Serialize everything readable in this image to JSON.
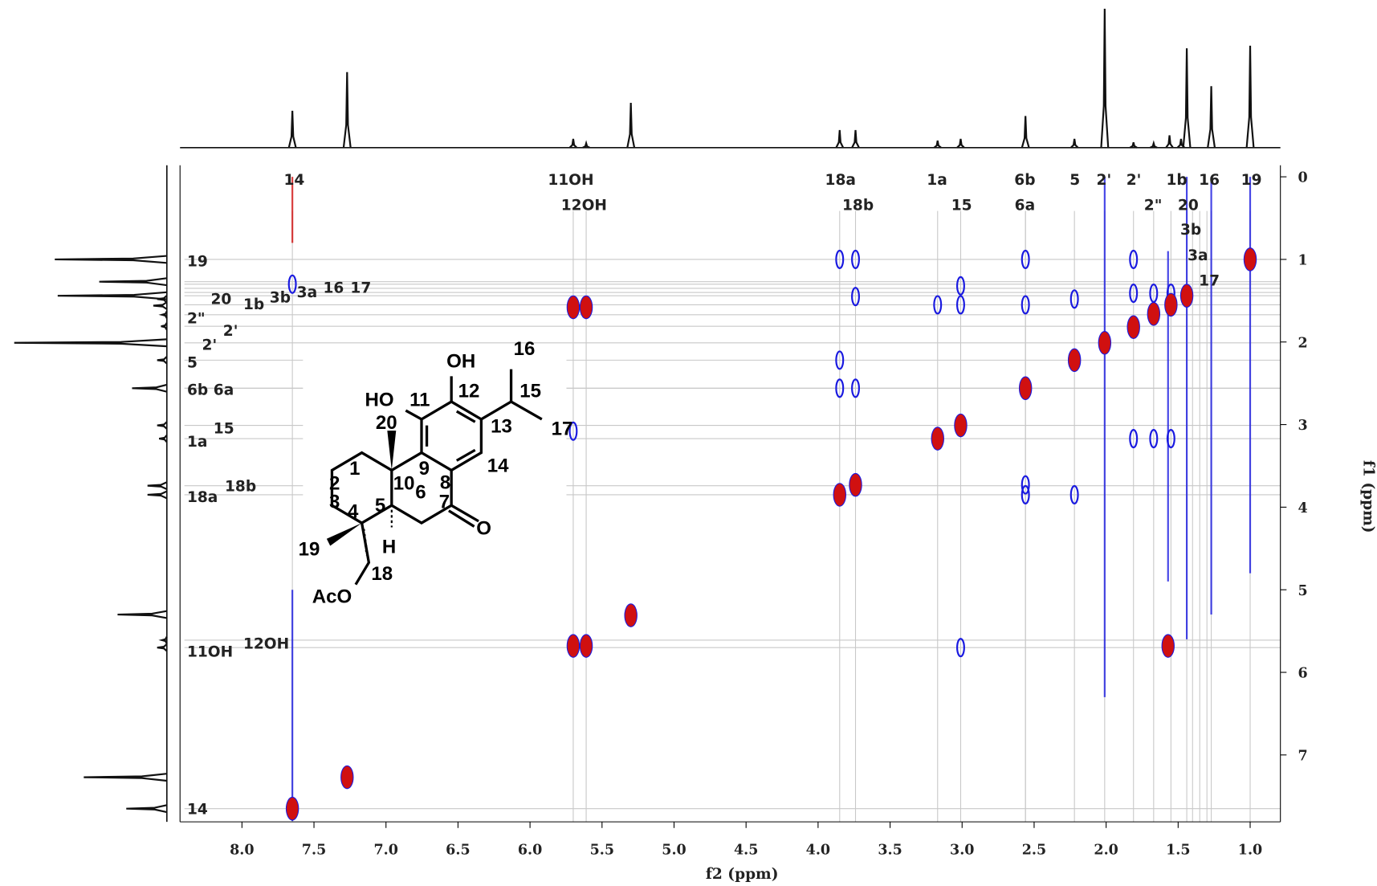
{
  "chart_data": {
    "type": "nmr2d",
    "x_label": "f2 (ppm)",
    "y_label": "f1 (ppm)",
    "xlim": [
      8.43,
      0.79
    ],
    "ylim": [
      -0.14,
      7.81
    ],
    "xticks": [
      {
        "value": 8,
        "label": "8.0"
      },
      {
        "value": 7.5,
        "label": "7.5"
      },
      {
        "value": 7,
        "label": "7.0"
      },
      {
        "value": 6.5,
        "label": "6.5"
      },
      {
        "value": 6,
        "label": "6.0"
      },
      {
        "value": 5.5,
        "label": "5.5"
      },
      {
        "value": 5,
        "label": "5.0"
      },
      {
        "value": 4.5,
        "label": "4.5"
      },
      {
        "value": 4,
        "label": "4.0"
      },
      {
        "value": 3.5,
        "label": "3.5"
      },
      {
        "value": 3,
        "label": "3.0"
      },
      {
        "value": 2.5,
        "label": "2.5"
      },
      {
        "value": 2,
        "label": "2.0"
      },
      {
        "value": 1.5,
        "label": "1.5"
      },
      {
        "value": 1,
        "label": "1.0"
      }
    ],
    "yticks": [
      0,
      1,
      2,
      3,
      4,
      5,
      6,
      7
    ],
    "projection": {
      "ppm": [
        7.65,
        7.27,
        5.7,
        5.61,
        5.3,
        3.85,
        3.74,
        3.17,
        3.01,
        2.56,
        2.22,
        2.01,
        1.81,
        1.67,
        1.56,
        1.48,
        1.44,
        1.27,
        1.0
      ],
      "intensity": [
        42,
        86,
        10,
        5,
        51,
        20,
        20,
        8,
        10,
        36,
        10,
        158,
        6,
        5,
        14,
        10,
        113,
        70,
        116
      ],
      "color": "#111111"
    },
    "top_labels": [
      {
        "text": "14",
        "ppm": 7.65
      },
      {
        "text": "11OH",
        "ppm": 5.7
      },
      {
        "text": "12OH",
        "ppm": 5.61
      },
      {
        "text": "18a",
        "ppm": 3.85
      },
      {
        "text": "18b",
        "ppm": 3.74
      },
      {
        "text": "1a",
        "ppm": 3.17
      },
      {
        "text": "15",
        "ppm": 3.01
      },
      {
        "text": "6b",
        "ppm": 2.56
      },
      {
        "text": "6a",
        "ppm": 2.56
      },
      {
        "text": "5",
        "ppm": 2.22
      },
      {
        "text": "2'",
        "ppm": 2.01
      },
      {
        "text": "2'",
        "ppm": 1.81
      },
      {
        "text": "2\"",
        "ppm": 1.67
      },
      {
        "text": "1b",
        "ppm": 1.55
      },
      {
        "text": "20",
        "ppm": 1.44
      },
      {
        "text": "3b",
        "ppm": 1.4
      },
      {
        "text": "3a",
        "ppm": 1.35
      },
      {
        "text": "17",
        "ppm": 1.3
      },
      {
        "text": "16",
        "ppm": 1.27
      },
      {
        "text": "19",
        "ppm": 1.0
      }
    ],
    "left_labels": [
      {
        "text": "19",
        "ppm": 1.0
      },
      {
        "text": "20",
        "ppm": 1.44
      },
      {
        "text": "1b",
        "ppm": 1.55
      },
      {
        "text": "3b",
        "ppm": 1.4
      },
      {
        "text": "3a",
        "ppm": 1.35
      },
      {
        "text": "16",
        "ppm": 1.27
      },
      {
        "text": "17",
        "ppm": 1.3
      },
      {
        "text": "2\"",
        "ppm": 1.67
      },
      {
        "text": "2'",
        "ppm": 1.81
      },
      {
        "text": "2'",
        "ppm": 2.01
      },
      {
        "text": "5",
        "ppm": 2.22
      },
      {
        "text": "6b",
        "ppm": 2.56
      },
      {
        "text": "6a",
        "ppm": 2.56
      },
      {
        "text": "1a",
        "ppm": 3.17
      },
      {
        "text": "15",
        "ppm": 3.01
      },
      {
        "text": "18a",
        "ppm": 3.85
      },
      {
        "text": "18b",
        "ppm": 3.74
      },
      {
        "text": "11OH",
        "ppm": 5.7
      },
      {
        "text": "12OH",
        "ppm": 5.61
      },
      {
        "text": "14",
        "ppm": 7.65
      }
    ],
    "positive_peaks": {
      "color": "#d01010",
      "x": [
        7.65,
        7.27,
        5.3,
        5.7,
        5.61,
        5.7,
        5.61,
        1.57,
        3.85,
        3.74,
        3.17,
        3.01,
        2.56,
        2.22,
        2.01,
        1.81,
        1.67,
        1.55,
        1.44,
        1.0
      ],
      "y": [
        7.65,
        7.27,
        5.31,
        1.58,
        1.58,
        5.68,
        5.68,
        5.68,
        3.85,
        3.73,
        3.17,
        3.01,
        2.56,
        2.22,
        2.01,
        1.82,
        1.66,
        1.55,
        1.44,
        1.0
      ]
    },
    "negative_peaks": {
      "color": "#1a1ae0",
      "x": [
        3.85,
        3.74,
        3.74,
        3.85,
        3.85,
        3.74,
        3.17,
        3.01,
        3.01,
        3.01,
        2.56,
        2.56,
        2.56,
        2.56,
        2.22,
        2.22,
        1.81,
        1.81,
        1.81,
        1.67,
        1.67,
        1.55,
        1.55,
        5.7,
        7.65
      ],
      "y": [
        1.0,
        1.0,
        1.45,
        2.22,
        2.56,
        2.56,
        1.55,
        1.32,
        1.55,
        5.7,
        1.0,
        1.55,
        3.73,
        3.85,
        1.48,
        3.85,
        1.0,
        1.41,
        3.17,
        1.41,
        3.17,
        1.41,
        3.17,
        3.08,
        1.3
      ]
    },
    "t1_noise": {
      "x": [
        2.01,
        1.44,
        1.27,
        1.0,
        1.57,
        7.65,
        7.65
      ],
      "y_start": [
        0.0,
        0.0,
        0.0,
        0.0,
        0.9,
        5.0,
        0.0
      ],
      "y_end": [
        6.3,
        5.6,
        5.3,
        4.8,
        4.9,
        7.8,
        0.8
      ],
      "color": [
        "#1a1ae0",
        "#1a1ae0",
        "#1a1ae0",
        "#1a1ae0",
        "#1a1ae0",
        "#1a1ae0",
        "#d01010"
      ]
    }
  },
  "structure": {
    "labels": [
      "OH",
      "HO",
      "16",
      "15",
      "17",
      "11",
      "12",
      "13",
      "14",
      "20",
      "9",
      "8",
      "10",
      "1",
      "2",
      "3",
      "4",
      "5",
      "6",
      "7",
      "O",
      "19",
      "H",
      "18",
      "AcO"
    ]
  }
}
